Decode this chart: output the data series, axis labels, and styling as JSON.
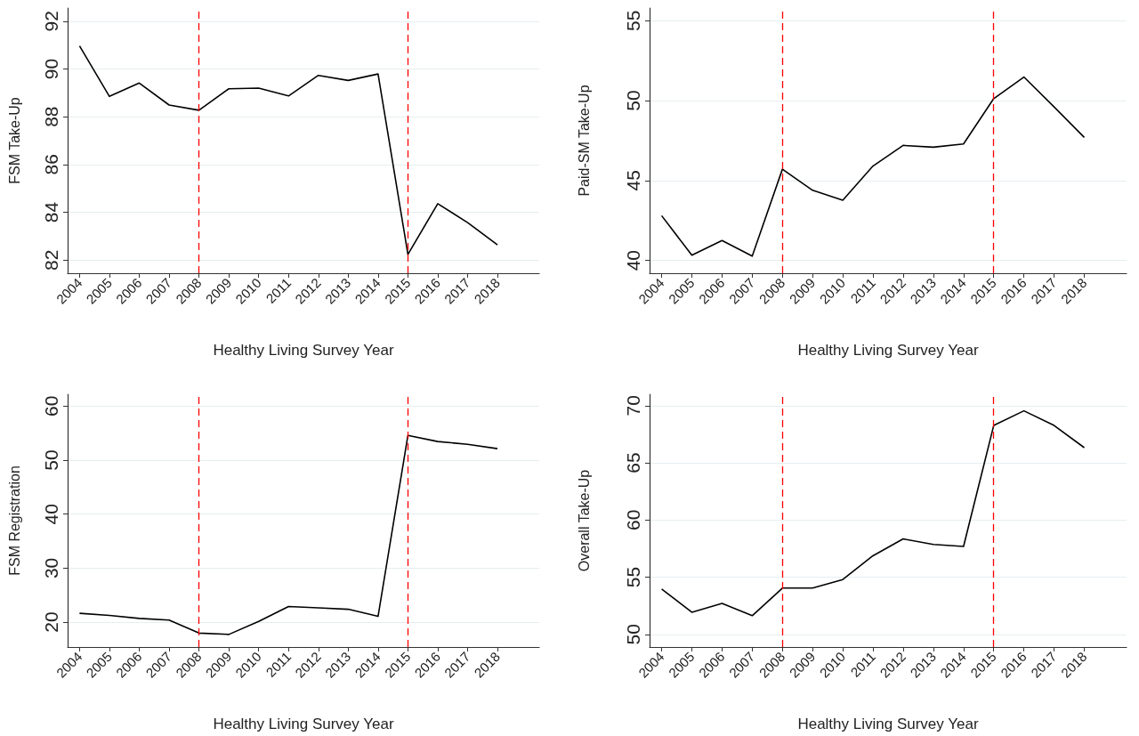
{
  "chart_data": [
    {
      "type": "line",
      "xlabel": "Healthy Living Survey Year",
      "ylabel": "FSM Take-Up",
      "x": [
        2004,
        2005,
        2006,
        2007,
        2008,
        2009,
        2010,
        2011,
        2012,
        2013,
        2014,
        2015,
        2016,
        2017,
        2018
      ],
      "series": [
        {
          "color": "#000000",
          "values": [
            90.96,
            88.85,
            89.41,
            88.49,
            88.27,
            89.17,
            89.2,
            88.87,
            89.73,
            89.52,
            89.79,
            82.24,
            84.36,
            83.57,
            82.64
          ]
        }
      ],
      "xlim": [
        2003.6,
        2019.4
      ],
      "xticks": [
        2004,
        2005,
        2006,
        2007,
        2008,
        2009,
        2010,
        2011,
        2012,
        2013,
        2014,
        2015,
        2016,
        2017,
        2018
      ],
      "ylim": [
        81.45,
        92.55
      ],
      "yticks": [
        82,
        84,
        86,
        88,
        90,
        92
      ],
      "grid": "y",
      "marker": "none",
      "line_style": "solid",
      "ref_lines": [
        {
          "axis": "x",
          "value": 2008,
          "color": "#ff0000",
          "line_style": "dashed"
        },
        {
          "axis": "x",
          "value": 2015,
          "color": "#ff0000",
          "line_style": "dashed"
        }
      ]
    },
    {
      "type": "line",
      "xlabel": "Healthy Living Survey Year",
      "ylabel": "Paid-SM Take-Up",
      "x": [
        2004,
        2005,
        2006,
        2007,
        2008,
        2009,
        2010,
        2011,
        2012,
        2013,
        2014,
        2015,
        2016,
        2017,
        2018
      ],
      "series": [
        {
          "color": "#000000",
          "values": [
            42.8,
            40.33,
            41.25,
            40.27,
            45.71,
            44.39,
            43.77,
            45.91,
            47.2,
            47.09,
            47.29,
            50.13,
            51.48,
            49.61,
            47.7
          ]
        }
      ],
      "xlim": [
        2003.6,
        2019.4
      ],
      "xticks": [
        2004,
        2005,
        2006,
        2007,
        2008,
        2009,
        2010,
        2011,
        2012,
        2013,
        2014,
        2015,
        2016,
        2017,
        2018
      ],
      "ylim": [
        39.2,
        55.8
      ],
      "yticks": [
        40,
        45,
        50,
        55
      ],
      "grid": "y",
      "marker": "none",
      "line_style": "solid",
      "ref_lines": [
        {
          "axis": "x",
          "value": 2008,
          "color": "#ff0000",
          "line_style": "dashed"
        },
        {
          "axis": "x",
          "value": 2015,
          "color": "#ff0000",
          "line_style": "dashed"
        }
      ]
    },
    {
      "type": "line",
      "xlabel": "Healthy Living Survey Year",
      "ylabel": "FSM Registration",
      "x": [
        2004,
        2005,
        2006,
        2007,
        2008,
        2009,
        2010,
        2011,
        2012,
        2013,
        2014,
        2015,
        2016,
        2017,
        2018
      ],
      "series": [
        {
          "color": "#000000",
          "values": [
            21.64,
            21.26,
            20.69,
            20.38,
            17.98,
            17.73,
            20.13,
            22.9,
            22.65,
            22.39,
            21.07,
            54.58,
            53.45,
            52.94,
            52.13
          ]
        }
      ],
      "xlim": [
        2003.6,
        2019.4
      ],
      "xticks": [
        2004,
        2005,
        2006,
        2007,
        2008,
        2009,
        2010,
        2011,
        2012,
        2013,
        2014,
        2015,
        2016,
        2017,
        2018
      ],
      "ylim": [
        15.4,
        62.2
      ],
      "yticks": [
        20,
        30,
        40,
        50,
        60
      ],
      "grid": "y",
      "marker": "none",
      "line_style": "solid",
      "ref_lines": [
        {
          "axis": "x",
          "value": 2008,
          "color": "#ff0000",
          "line_style": "dashed"
        },
        {
          "axis": "x",
          "value": 2015,
          "color": "#ff0000",
          "line_style": "dashed"
        }
      ]
    },
    {
      "type": "line",
      "xlabel": "Healthy Living Survey Year",
      "ylabel": "Overall Take-Up",
      "x": [
        2004,
        2005,
        2006,
        2007,
        2008,
        2009,
        2010,
        2011,
        2012,
        2013,
        2014,
        2015,
        2016,
        2017,
        2018
      ],
      "series": [
        {
          "color": "#000000",
          "values": [
            53.96,
            51.94,
            52.71,
            51.64,
            54.05,
            54.05,
            54.8,
            56.88,
            58.35,
            57.87,
            57.69,
            68.27,
            69.55,
            68.27,
            66.33
          ]
        }
      ],
      "xlim": [
        2003.6,
        2019.4
      ],
      "xticks": [
        2004,
        2005,
        2006,
        2007,
        2008,
        2009,
        2010,
        2011,
        2012,
        2013,
        2014,
        2015,
        2016,
        2017,
        2018
      ],
      "ylim": [
        48.9,
        71.0
      ],
      "yticks": [
        50,
        55,
        60,
        65,
        70
      ],
      "grid": "y",
      "marker": "none",
      "line_style": "solid",
      "ref_lines": [
        {
          "axis": "x",
          "value": 2008,
          "color": "#ff0000",
          "line_style": "dashed"
        },
        {
          "axis": "x",
          "value": 2015,
          "color": "#ff0000",
          "line_style": "dashed"
        }
      ]
    }
  ]
}
